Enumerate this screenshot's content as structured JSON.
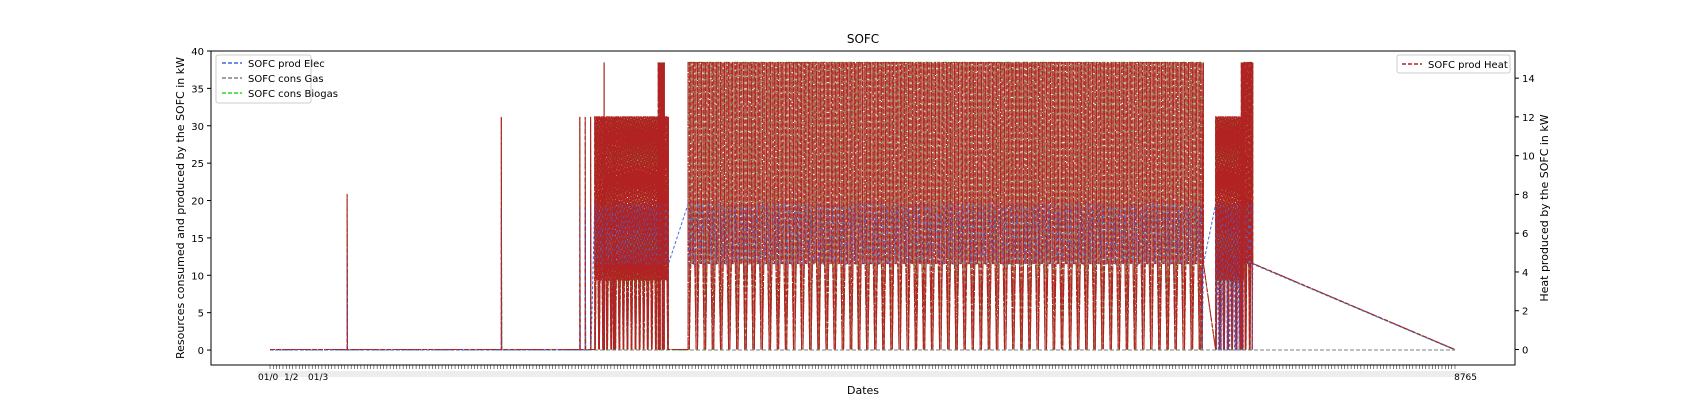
{
  "chart_data": {
    "type": "line",
    "title": "SOFC",
    "xlabel": "Dates",
    "ylabel": "Resources consumed and produced by the SOFC in kW",
    "ylabel_right": "Heat produced by the SOFC in kW",
    "x_range": [
      0,
      8760
    ],
    "ylim": [
      -2,
      40
    ],
    "ylim_right": [
      -0.8,
      15.4
    ],
    "yticks": [
      0,
      5,
      10,
      15,
      20,
      25,
      30,
      35,
      40
    ],
    "yticks_right": [
      0,
      2,
      4,
      6,
      8,
      10,
      12,
      14
    ],
    "grid": false,
    "legend_left_placement": "top-left",
    "legend_right_placement": "top-right",
    "colors": {
      "elec": "#4169e1",
      "gas": "#808080",
      "biogas": "#32cd32",
      "heat": "#b22222"
    },
    "series": [
      {
        "name": "SOFC prod Elec",
        "axis": "left",
        "color": "#4169e1",
        "style": "dashed"
      },
      {
        "name": "SOFC cons Gas",
        "axis": "left",
        "color": "#808080",
        "style": "dashed"
      },
      {
        "name": "SOFC cons Biogas",
        "axis": "left",
        "color": "#32cd32",
        "style": "dashed"
      },
      {
        "name": "SOFC prod Heat",
        "axis": "right",
        "color": "#b22222",
        "style": "dashed"
      }
    ],
    "events": [
      {
        "t": 570,
        "elec": 13,
        "biogas": 21,
        "heat": 8
      },
      {
        "t": 1710,
        "elec": 19,
        "biogas": 31,
        "heat": 12
      },
      {
        "t": 2290,
        "elec": 19,
        "biogas": 31,
        "heat": 12
      },
      {
        "t": 2330,
        "elec": 19,
        "biogas": 31,
        "heat": 12
      },
      {
        "t": 2370,
        "elec": 19,
        "biogas": 31,
        "heat": 12
      },
      {
        "t": 2470,
        "elec": 19,
        "biogas": 38.5,
        "heat": 14.8
      },
      {
        "t": 2540,
        "elec": 19,
        "biogas": 31,
        "heat": 12
      }
    ],
    "dense_blocks": [
      {
        "start": 2400,
        "end": 2940,
        "elec_low": 11.5,
        "elec_high": 19.5,
        "biogas_peak": 31,
        "heat_peak": 12,
        "step": 10
      },
      {
        "start": 2870,
        "end": 2910,
        "elec_low": 11.5,
        "elec_high": 19.5,
        "biogas_peak": 38.5,
        "heat_peak": 14.8,
        "step": 10
      },
      {
        "start": 3090,
        "end": 6890,
        "elec_low": 11.5,
        "elec_high": 19.5,
        "biogas_peak": 38.5,
        "heat_peak": 14.8,
        "step": 20
      },
      {
        "start": 6990,
        "end": 7190,
        "elec_low": 0,
        "elec_high": 19.5,
        "biogas_peak": 31,
        "heat_peak": 12,
        "step": 10
      },
      {
        "start": 7180,
        "end": 7260,
        "elec_low": 11.5,
        "elec_high": 19.5,
        "biogas_peak": 38.5,
        "heat_peak": 14.8,
        "step": 10
      }
    ],
    "x_tick_labels_visible": [
      "01/0",
      "1/2",
      "01/3"
    ],
    "x_tick_label_end": "8765"
  }
}
